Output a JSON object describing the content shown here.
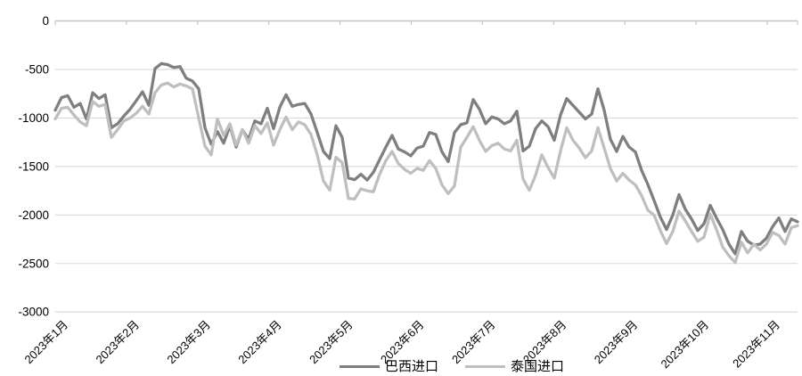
{
  "chart_data": {
    "type": "line",
    "title": "",
    "xlabel": "",
    "ylabel": "",
    "ylim": [
      -3000,
      0
    ],
    "y_ticks": [
      0,
      -500,
      -1000,
      -1500,
      -2000,
      -2500,
      -3000
    ],
    "y_tick_labels": [
      "0",
      "-500",
      "-1000",
      "-1500",
      "-2000",
      "-2500",
      "-3000"
    ],
    "x_tick_labels": [
      "2023年1月",
      "2023年2月",
      "2023年3月",
      "2023年4月",
      "2023年5月",
      "2023年6月",
      "2023年7月",
      "2023年8月",
      "2023年9月",
      "2023年10月",
      "2023年11月"
    ],
    "grid": "horizontal-gridlines-on",
    "legend_position": "bottom-center",
    "series": [
      {
        "name": "巴西进口",
        "color": "#7f7f7f",
        "values": [
          -920,
          -790,
          -770,
          -890,
          -850,
          -1010,
          -740,
          -800,
          -760,
          -1100,
          -1060,
          -980,
          -910,
          -820,
          -730,
          -870,
          -490,
          -440,
          -450,
          -480,
          -470,
          -590,
          -620,
          -700,
          -1100,
          -1270,
          -1140,
          -1260,
          -1080,
          -1300,
          -1120,
          -1220,
          -1030,
          -1060,
          -900,
          -1110,
          -890,
          -760,
          -880,
          -860,
          -850,
          -960,
          -1150,
          -1345,
          -1420,
          -1080,
          -1200,
          -1620,
          -1635,
          -1580,
          -1640,
          -1560,
          -1430,
          -1300,
          -1180,
          -1320,
          -1350,
          -1390,
          -1310,
          -1290,
          -1150,
          -1170,
          -1350,
          -1450,
          -1150,
          -1070,
          -1050,
          -810,
          -910,
          -1060,
          -990,
          -1010,
          -1060,
          -1030,
          -930,
          -1340,
          -1290,
          -1110,
          -1030,
          -1090,
          -1230,
          -970,
          -800,
          -870,
          -940,
          -1010,
          -960,
          -700,
          -920,
          -1220,
          -1345,
          -1190,
          -1300,
          -1350,
          -1540,
          -1685,
          -1850,
          -2020,
          -2150,
          -2000,
          -1790,
          -1940,
          -2040,
          -2160,
          -2090,
          -1900,
          -2030,
          -2150,
          -2300,
          -2400,
          -2170,
          -2270,
          -2310,
          -2300,
          -2240,
          -2120,
          -2030,
          -2170,
          -2040,
          -2070
        ]
      },
      {
        "name": "泰国进口",
        "color": "#bfbfbf",
        "values": [
          -1010,
          -900,
          -890,
          -970,
          -1040,
          -1080,
          -830,
          -880,
          -860,
          -1200,
          -1120,
          -1030,
          -1000,
          -950,
          -880,
          -960,
          -740,
          -660,
          -640,
          -680,
          -650,
          -670,
          -700,
          -1000,
          -1290,
          -1380,
          -1010,
          -1180,
          -1060,
          -1280,
          -1120,
          -1260,
          -1080,
          -1160,
          -1050,
          -1280,
          -1120,
          -990,
          -1120,
          -1040,
          -1070,
          -1170,
          -1380,
          -1650,
          -1745,
          -1405,
          -1460,
          -1830,
          -1835,
          -1730,
          -1750,
          -1760,
          -1580,
          -1440,
          -1345,
          -1470,
          -1530,
          -1570,
          -1520,
          -1540,
          -1440,
          -1520,
          -1690,
          -1780,
          -1700,
          -1300,
          -1200,
          -1090,
          -1230,
          -1345,
          -1285,
          -1260,
          -1320,
          -1340,
          -1230,
          -1630,
          -1745,
          -1590,
          -1380,
          -1510,
          -1620,
          -1340,
          -1100,
          -1230,
          -1310,
          -1410,
          -1340,
          -1100,
          -1310,
          -1520,
          -1650,
          -1570,
          -1640,
          -1690,
          -1800,
          -1950,
          -2000,
          -2160,
          -2295,
          -2170,
          -1960,
          -2060,
          -2170,
          -2270,
          -2230,
          -1990,
          -2150,
          -2330,
          -2420,
          -2490,
          -2280,
          -2390,
          -2300,
          -2360,
          -2300,
          -2180,
          -2210,
          -2300,
          -2130,
          -2110
        ]
      }
    ]
  },
  "legend": {
    "items": [
      {
        "label": "巴西进口",
        "color": "#7f7f7f"
      },
      {
        "label": "泰国进口",
        "color": "#bfbfbf"
      }
    ]
  },
  "colors": {
    "background": "#ffffff",
    "gridline": "#d9d9d9",
    "axis_line": "#c6c6c6",
    "tick_mark": "#c6c6c6",
    "axis_text": "#000000",
    "series_brazil": "#7f7f7f",
    "series_thailand": "#bfbfbf"
  }
}
